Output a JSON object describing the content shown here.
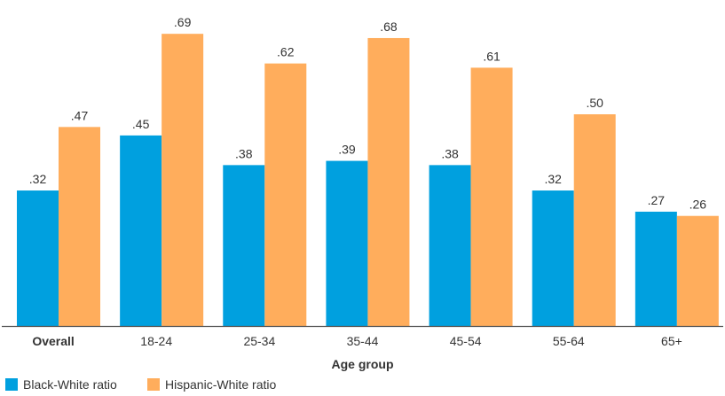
{
  "chart_data": {
    "type": "bar",
    "categories": [
      "Overall",
      "18-24",
      "25-34",
      "35-44",
      "45-54",
      "55-64",
      "65+"
    ],
    "bold_categories": [
      "Overall"
    ],
    "series": [
      {
        "name": "Black-White ratio",
        "color": "#00a0df",
        "values": [
          0.32,
          0.45,
          0.38,
          0.39,
          0.38,
          0.32,
          0.27
        ],
        "labels": [
          ".32",
          ".45",
          ".38",
          ".39",
          ".38",
          ".32",
          ".27"
        ]
      },
      {
        "name": "Hispanic-White ratio",
        "color": "#ffad5c",
        "values": [
          0.47,
          0.69,
          0.62,
          0.68,
          0.61,
          0.5,
          0.26
        ],
        "labels": [
          ".47",
          ".69",
          ".62",
          ".68",
          ".61",
          ".50",
          ".26"
        ]
      }
    ],
    "xlabel": "Age group",
    "ylabel": "",
    "ylim": [
      0,
      0.75
    ],
    "grid": false,
    "legend_position": "bottom-left"
  }
}
